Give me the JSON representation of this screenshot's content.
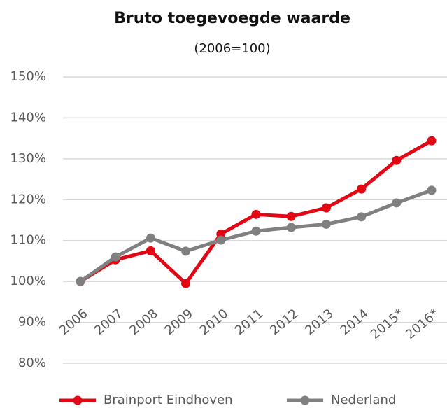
{
  "chart_data": {
    "type": "line",
    "title": "Bruto toegevoegde waarde",
    "subtitle": "(2006=100)",
    "categories": [
      "2006",
      "2007",
      "2008",
      "2009",
      "2010",
      "2011",
      "2012",
      "2013",
      "2014",
      "2015*",
      "2016*"
    ],
    "series": [
      {
        "name": "Brainport Eindhoven",
        "color": "#e30613",
        "values": [
          100,
          105.3,
          107.5,
          99.5,
          111.6,
          116.4,
          115.9,
          118,
          122.6,
          129.6,
          134.4
        ]
      },
      {
        "name": "Nederland",
        "color": "#808080",
        "values": [
          100,
          106,
          110.6,
          107.4,
          110.1,
          112.3,
          113.2,
          114,
          115.8,
          119.2,
          122.3
        ]
      }
    ],
    "ylim": [
      80,
      150
    ],
    "yticks": [
      {
        "value": 80,
        "label": "80%"
      },
      {
        "value": 90,
        "label": "90%"
      },
      {
        "value": 100,
        "label": "100%"
      },
      {
        "value": 110,
        "label": "110%"
      },
      {
        "value": 120,
        "label": "120%"
      },
      {
        "value": 130,
        "label": "130%"
      },
      {
        "value": 140,
        "label": "140%"
      },
      {
        "value": 150,
        "label": "150%"
      }
    ],
    "grid": true,
    "legend": "bottom"
  }
}
